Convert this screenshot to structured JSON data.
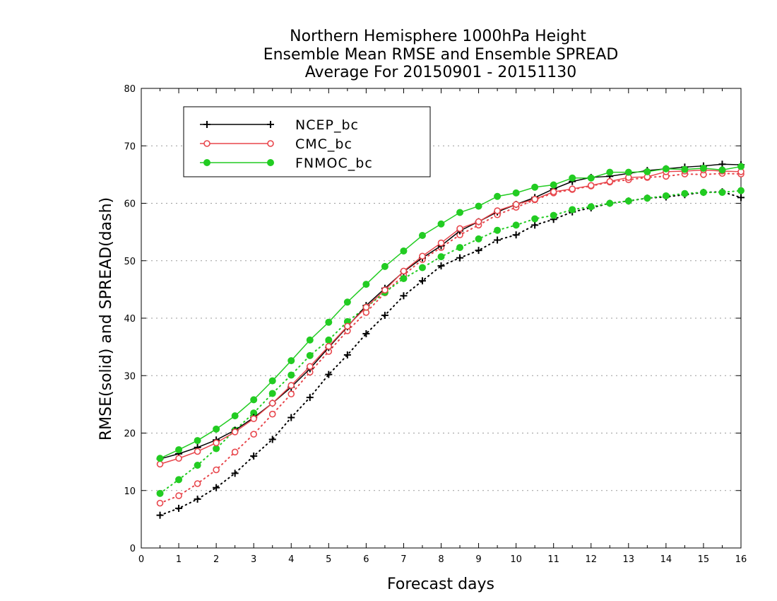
{
  "chart_data": {
    "type": "line",
    "title": [
      "Northern Hemisphere 1000hPa Height",
      "Ensemble Mean RMSE and Ensemble SPREAD",
      "Average For 20150901 - 20151130"
    ],
    "xlabel": "Forecast days",
    "ylabel": "RMSE(solid) and SPREAD(dash)",
    "xlim": [
      0,
      16
    ],
    "ylim": [
      0,
      80
    ],
    "x_ticks": [
      0,
      1,
      2,
      3,
      4,
      5,
      6,
      7,
      8,
      9,
      10,
      11,
      12,
      13,
      14,
      15,
      16
    ],
    "y_ticks": [
      0,
      10,
      20,
      30,
      40,
      50,
      60,
      70,
      80
    ],
    "grid": "horizontal dotted",
    "legend_position": "top-left",
    "x": [
      0.5,
      1,
      1.5,
      2,
      2.5,
      3,
      3.5,
      4,
      4.5,
      5,
      5.5,
      6,
      6.5,
      7,
      7.5,
      8,
      8.5,
      9,
      9.5,
      10,
      10.5,
      11,
      11.5,
      12,
      12.5,
      13,
      13.5,
      14,
      14.5,
      15,
      15.5,
      16
    ],
    "series": [
      {
        "name": "NCEP_bc",
        "legend": true,
        "style": "solid",
        "marker": "plus",
        "color": "#000000",
        "values": [
          15.5,
          16.4,
          17.5,
          18.8,
          20.5,
          22.7,
          25.2,
          28.0,
          31.2,
          34.9,
          38.5,
          42.2,
          45.2,
          48.1,
          50.5,
          52.6,
          55.2,
          56.8,
          58.5,
          59.8,
          61.0,
          62.5,
          63.8,
          64.5,
          64.7,
          65.2,
          65.7,
          66.0,
          66.3,
          66.5,
          66.8,
          66.7
        ]
      },
      {
        "name": "CMC_bc",
        "legend": true,
        "style": "solid",
        "marker": "open-circle",
        "color": "#e8464c",
        "values": [
          14.6,
          15.6,
          16.8,
          18.3,
          20.2,
          22.5,
          25.2,
          28.3,
          31.6,
          35.1,
          38.6,
          41.9,
          44.9,
          48.2,
          50.8,
          53.1,
          55.6,
          56.8,
          58.7,
          59.8,
          60.7,
          62.0,
          62.5,
          63.1,
          63.8,
          64.5,
          64.6,
          65.5,
          65.6,
          65.8,
          65.6,
          65.5
        ]
      },
      {
        "name": "FNMOC_bc",
        "legend": true,
        "style": "solid",
        "marker": "filled-circle",
        "color": "#22cc22",
        "values": [
          15.6,
          17.1,
          18.7,
          20.7,
          23.0,
          25.8,
          29.1,
          32.6,
          36.2,
          39.3,
          42.8,
          45.9,
          49.0,
          51.7,
          54.4,
          56.4,
          58.4,
          59.5,
          61.2,
          61.8,
          62.8,
          63.2,
          64.4,
          64.4,
          65.4,
          65.4,
          65.5,
          66.0,
          65.9,
          66.1,
          65.8,
          66.4
        ]
      },
      {
        "name": "NCEP_bc spread",
        "legend": false,
        "style": "dotted",
        "marker": "plus",
        "color": "#000000",
        "values": [
          5.7,
          6.9,
          8.5,
          10.5,
          13.0,
          16.0,
          18.9,
          22.7,
          26.2,
          30.2,
          33.6,
          37.3,
          40.5,
          43.9,
          46.5,
          49.1,
          50.5,
          51.8,
          53.6,
          54.5,
          56.2,
          57.2,
          58.5,
          59.2,
          60.0,
          60.4,
          60.9,
          61.1,
          61.5,
          61.9,
          62.0,
          61.0
        ]
      },
      {
        "name": "CMC_bc spread",
        "legend": false,
        "style": "dotted",
        "marker": "open-circle",
        "color": "#e8464c",
        "values": [
          7.8,
          9.1,
          11.2,
          13.6,
          16.7,
          19.8,
          23.3,
          26.8,
          30.6,
          34.2,
          37.8,
          41.0,
          44.4,
          47.5,
          50.2,
          52.3,
          54.5,
          56.2,
          58.0,
          59.3,
          60.6,
          61.8,
          62.4,
          63.0,
          63.7,
          64.1,
          64.5,
          64.7,
          65.1,
          65.0,
          65.2,
          65.1
        ]
      },
      {
        "name": "FNMOC_bc spread",
        "legend": false,
        "style": "dotted",
        "marker": "filled-circle",
        "color": "#22cc22",
        "values": [
          9.5,
          11.9,
          14.4,
          17.3,
          20.5,
          23.5,
          26.9,
          30.1,
          33.5,
          36.2,
          39.4,
          41.9,
          44.5,
          46.9,
          48.8,
          50.7,
          52.3,
          53.8,
          55.3,
          56.2,
          57.3,
          57.9,
          58.9,
          59.4,
          60.0,
          60.4,
          60.9,
          61.3,
          61.7,
          61.9,
          61.9,
          62.2
        ]
      }
    ]
  }
}
